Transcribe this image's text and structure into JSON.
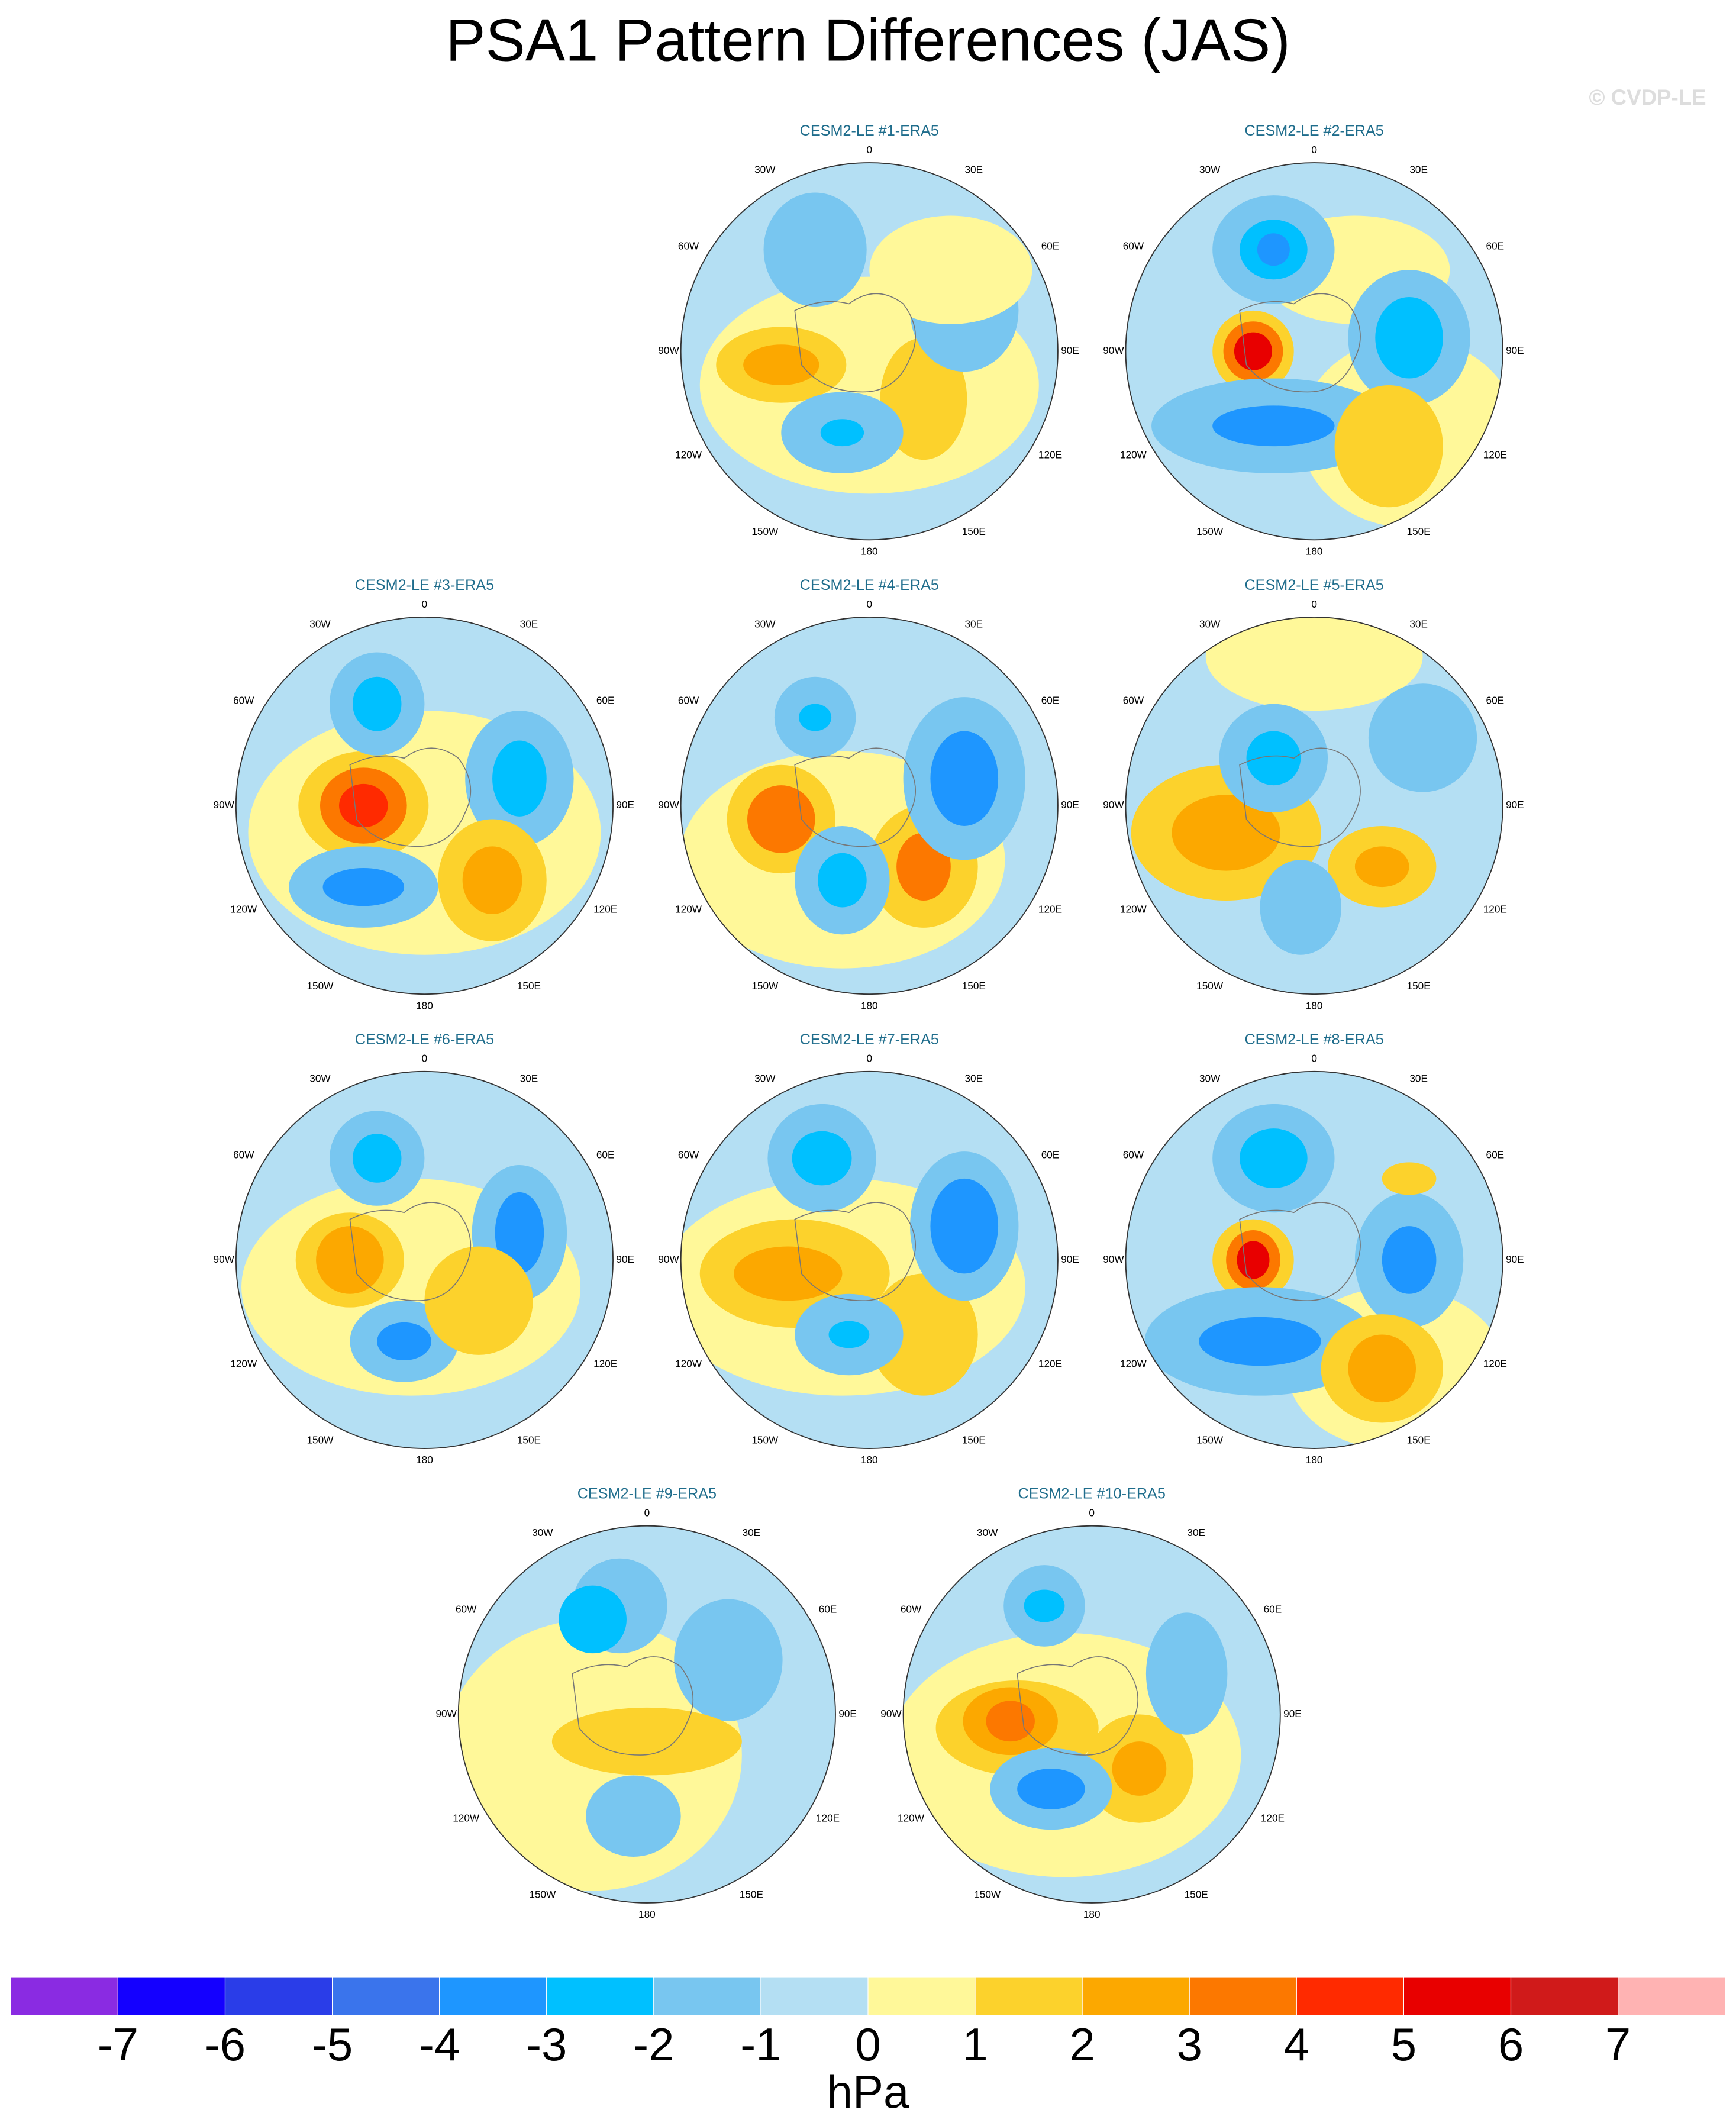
{
  "title": "PSA1 Pattern Differences (JAS)",
  "credit": "© CVDP-LE",
  "longitude_labels": [
    "0",
    "30E",
    "60E",
    "90E",
    "120E",
    "150E",
    "180",
    "150W",
    "120W",
    "90W",
    "60W",
    "30W"
  ],
  "panels": [
    {
      "title": "CESM2-LE #1-ERA5"
    },
    {
      "title": "CESM2-LE #2-ERA5"
    },
    {
      "title": "CESM2-LE #3-ERA5"
    },
    {
      "title": "CESM2-LE #4-ERA5"
    },
    {
      "title": "CESM2-LE #5-ERA5"
    },
    {
      "title": "CESM2-LE #6-ERA5"
    },
    {
      "title": "CESM2-LE #7-ERA5"
    },
    {
      "title": "CESM2-LE #8-ERA5"
    },
    {
      "title": "CESM2-LE #9-ERA5"
    },
    {
      "title": "CESM2-LE #10-ERA5"
    }
  ],
  "colorbar": {
    "colors": [
      "#8a2be2",
      "#1400ff",
      "#2a3de8",
      "#3a74ec",
      "#1e96ff",
      "#00c0ff",
      "#78c6f0",
      "#b4dff3",
      "#fff899",
      "#fcd22c",
      "#fca800",
      "#fc7800",
      "#ff2a00",
      "#e80000",
      "#d01a1a",
      "#ffb3b3"
    ],
    "ticks": [
      -7,
      -6,
      -5,
      -4,
      -3,
      -2,
      -1,
      0,
      1,
      2,
      3,
      4,
      5,
      6,
      7
    ],
    "label": "hPa"
  }
}
